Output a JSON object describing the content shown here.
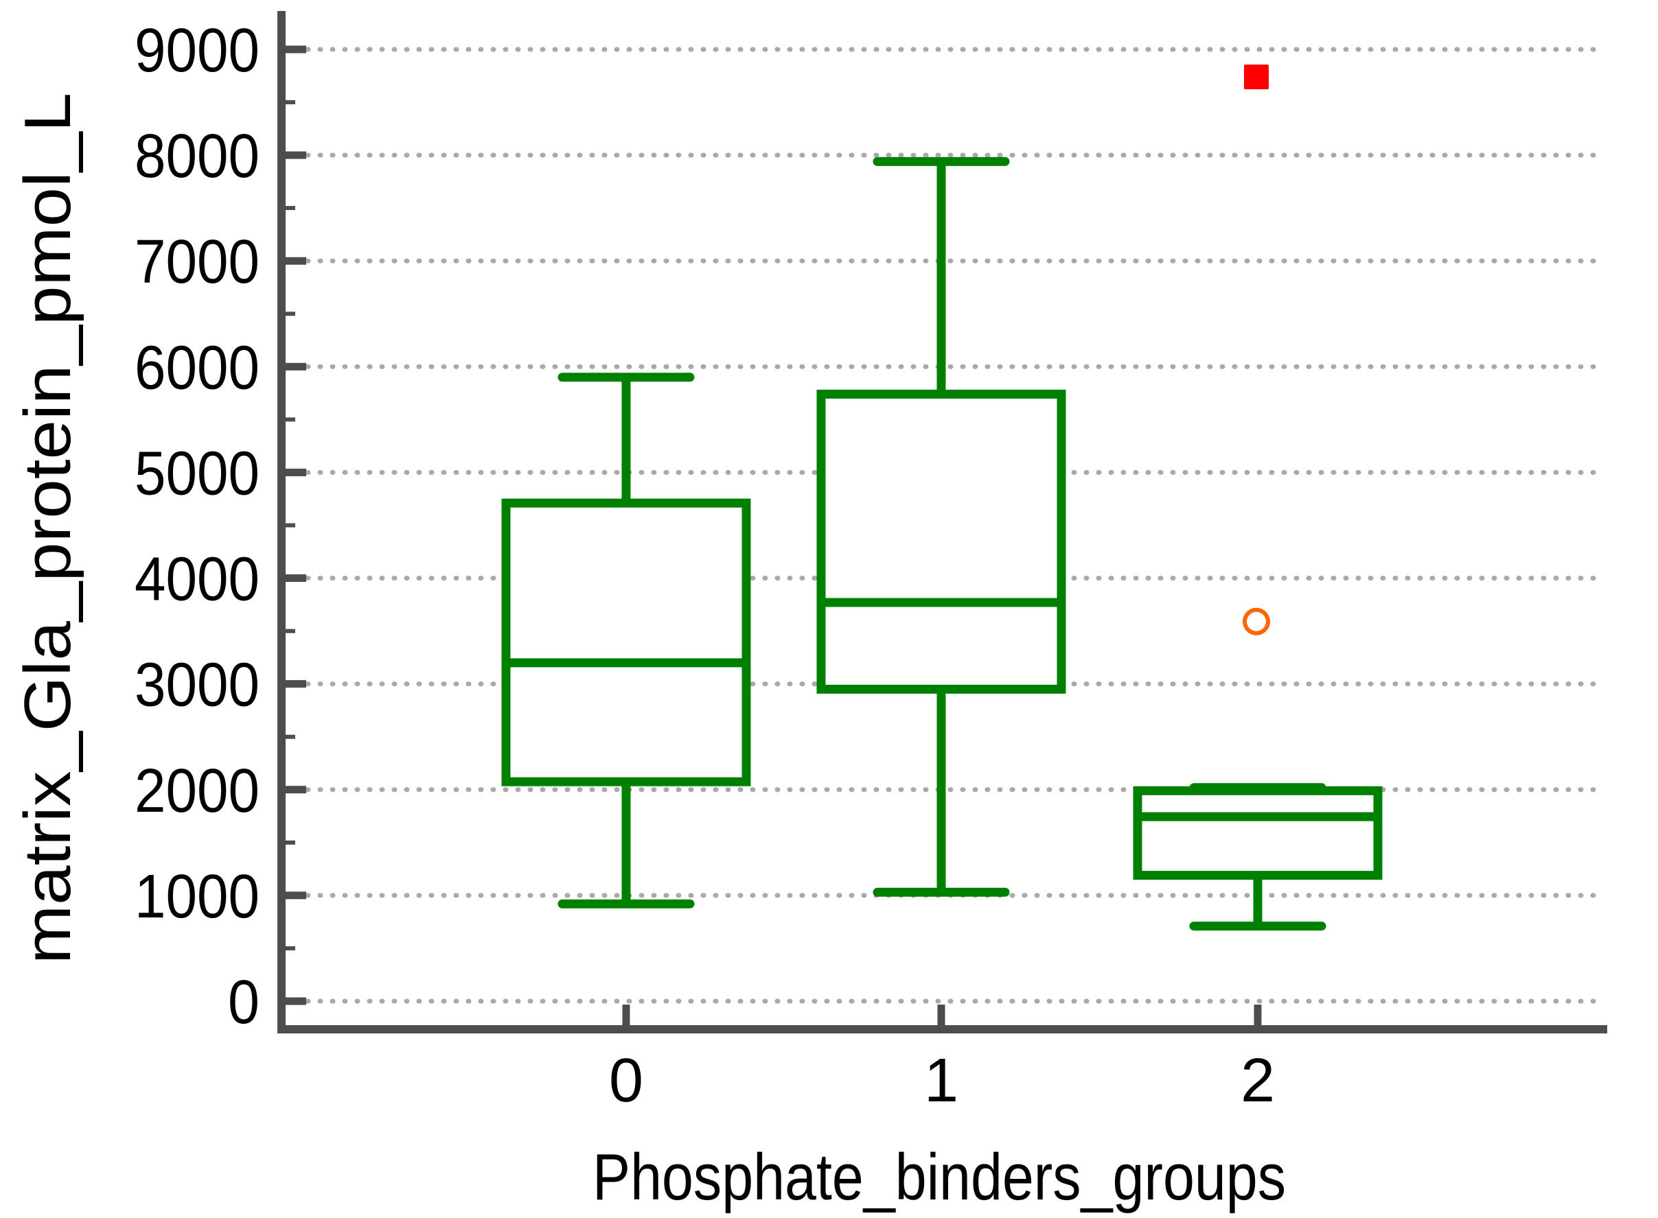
{
  "chart_data": {
    "type": "box",
    "title": "",
    "xlabel": "Phosphate_binders_groups",
    "ylabel": "matrix_Gla_protein_pmol_L",
    "categories": [
      "0",
      "1",
      "2"
    ],
    "y_axis": {
      "min": -270,
      "max": 9360,
      "major_tick_step": 1000,
      "minor_tick_step": 500,
      "tick_values": [
        0,
        1000,
        2000,
        3000,
        4000,
        5000,
        6000,
        7000,
        8000,
        9000
      ],
      "tick_labels": [
        "0",
        "1000",
        "2000",
        "3000",
        "4000",
        "5000",
        "6000",
        "7000",
        "8000",
        "9000"
      ],
      "grid": "dotted horizontal lines at each major tick"
    },
    "x_axis": {
      "grid": "none",
      "tick_labels": [
        "0",
        "1",
        "2"
      ]
    },
    "legend": "none",
    "series": [
      {
        "group": "0",
        "whisker_low": 920,
        "q1": 2075,
        "median": 3200,
        "q3": 4710,
        "whisker_high": 5900,
        "outliers": []
      },
      {
        "group": "1",
        "whisker_low": 1030,
        "q1": 2950,
        "median": 3770,
        "q3": 5740,
        "whisker_high": 7940,
        "outliers": []
      },
      {
        "group": "2",
        "whisker_low": 710,
        "q1": 1190,
        "median": 1745,
        "q3": 1990,
        "whisker_high": 2020,
        "outliers": [
          {
            "value": 3590,
            "marker": "open-circle",
            "color": "#FF6600"
          },
          {
            "value": 8740,
            "marker": "filled-square",
            "color": "#FF0000"
          }
        ]
      }
    ],
    "colors": {
      "box_stroke": "#008000",
      "box_fill": "#FFFFFF",
      "axis": "#4D4D4D",
      "grid": "#A9A9A9",
      "labels": "#000000",
      "outlier_circle": "#FF6600",
      "outlier_square": "#FF0000",
      "background": "#FFFFFF"
    }
  }
}
